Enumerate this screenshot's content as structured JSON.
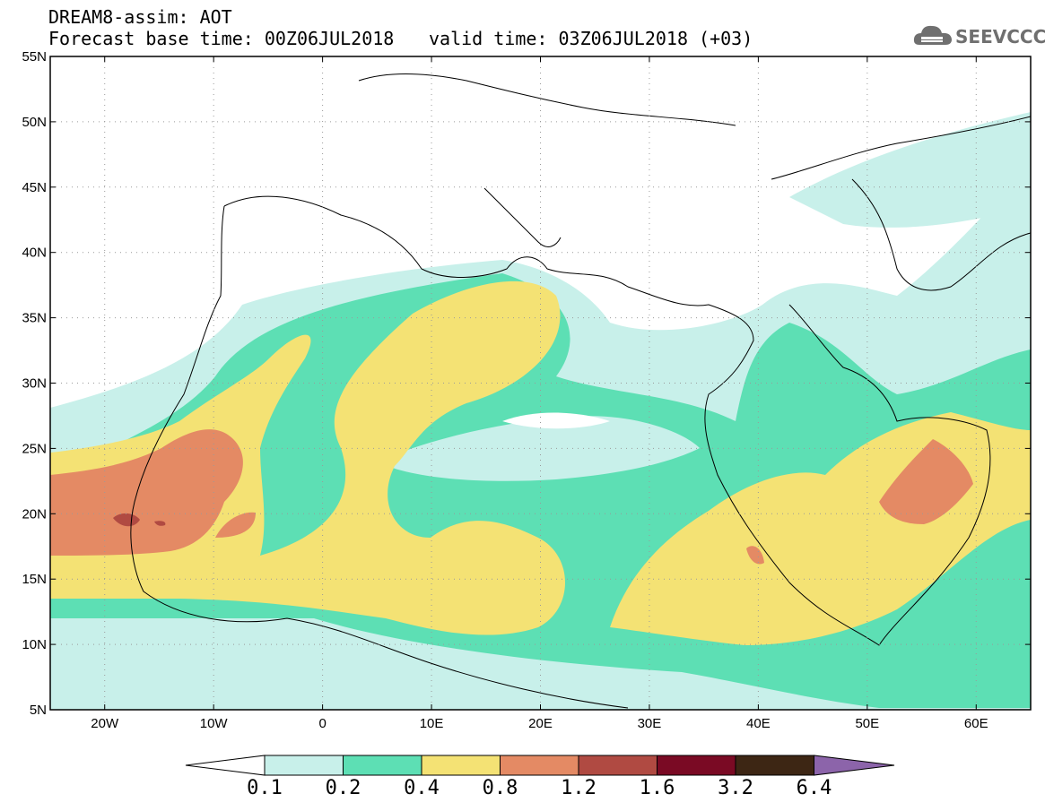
{
  "header": {
    "line1": "DREAM8-assim: AOT",
    "line2": "Forecast base time: 00Z06JUL2018",
    "line3": "valid time: 03Z06JUL2018 (+03)",
    "logo_text": "SEEVCCC"
  },
  "map": {
    "lon_range": [
      -25,
      65
    ],
    "lat_range": [
      5,
      55
    ],
    "lat_ticks": [
      "55N",
      "50N",
      "45N",
      "40N",
      "35N",
      "30N",
      "25N",
      "20N",
      "15N",
      "10N",
      "5N"
    ],
    "lon_ticks": [
      "20W",
      "10W",
      "0",
      "10E",
      "20E",
      "30E",
      "40E",
      "50E",
      "60E"
    ],
    "gridlines": "dotted"
  },
  "colorbar": {
    "labels": [
      "0.1",
      "0.2",
      "0.4",
      "0.8",
      "1.2",
      "1.6",
      "3.2",
      "6.4"
    ],
    "colors": [
      "#ffffff",
      "#c8f0ea",
      "#5ddfb4",
      "#f4e274",
      "#e48a64",
      "#b04a42",
      "#7a0a24",
      "#3d2614",
      "#8c64aa"
    ]
  }
}
